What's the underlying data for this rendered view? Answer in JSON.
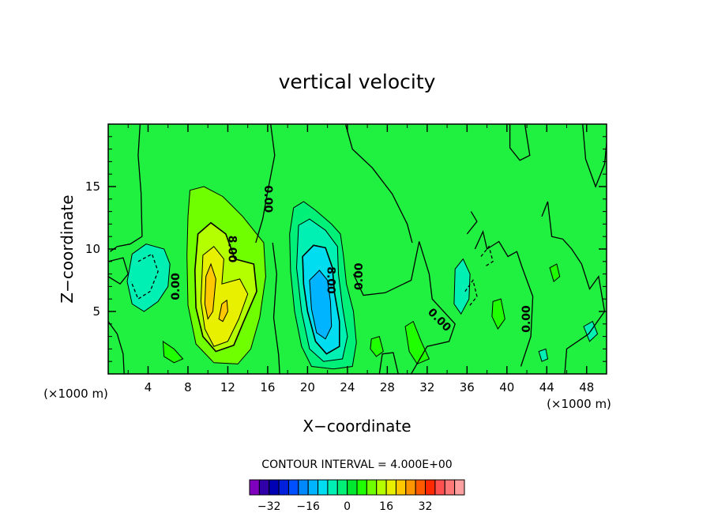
{
  "chart_data": {
    "type": "contour",
    "title": "vertical velocity",
    "xlabel": "X−coordinate",
    "ylabel": "Z−coordinate",
    "x_unit": "(×1000 m)",
    "y_unit": "(×1000 m)",
    "xlim": [
      0,
      50
    ],
    "ylim": [
      0,
      20
    ],
    "xticks": [
      4,
      8,
      12,
      16,
      20,
      24,
      28,
      32,
      36,
      40,
      44,
      48
    ],
    "yticks": [
      5,
      10,
      15
    ],
    "contour_interval_text": "CONTOUR INTERVAL = 4.000E+00",
    "contour_labels": [
      {
        "text": "0.00",
        "x": 6.8,
        "z": 7.0,
        "angle": -90
      },
      {
        "text": "8.00",
        "x": 12.4,
        "z": 10.0,
        "angle": 90
      },
      {
        "text": "0.00",
        "x": 16.0,
        "z": 14.0,
        "angle": 90
      },
      {
        "text": "8.00",
        "x": 22.3,
        "z": 7.5,
        "angle": 90
      },
      {
        "text": "0.00",
        "x": 25.2,
        "z": 7.8,
        "angle": -90
      },
      {
        "text": "0.00",
        "x": 33.2,
        "z": 4.3,
        "angle": 45
      },
      {
        "text": "0.00",
        "x": 42.0,
        "z": 4.4,
        "angle": -90
      }
    ],
    "colorbar": {
      "levels": [
        -36,
        -32,
        -28,
        -24,
        -20,
        -16,
        -12,
        -8,
        -4,
        0,
        4,
        8,
        12,
        16,
        20,
        24,
        28,
        32,
        36
      ],
      "tick_labels": [
        "−32",
        "−16",
        "0",
        "16",
        "32"
      ],
      "tick_values": [
        -32,
        -16,
        0,
        16,
        32
      ],
      "colors": [
        "#8000c0",
        "#3000a8",
        "#0000b4",
        "#0020dc",
        "#0050ff",
        "#0088ff",
        "#00b4ff",
        "#00dcf0",
        "#00f0b4",
        "#00f078",
        "#00e830",
        "#20ff00",
        "#70ff00",
        "#b4ff00",
        "#e8f000",
        "#ffc800",
        "#ff9600",
        "#ff5a00",
        "#ff2800",
        "#ff5050",
        "#ff7878",
        "#ffa0a0"
      ]
    },
    "features": [
      {
        "kind": "updraft",
        "center_x": 11,
        "center_z": 7,
        "max": 20
      },
      {
        "kind": "downdraft",
        "center_x": 21,
        "center_z": 5,
        "min": -12
      },
      {
        "kind": "weak-down",
        "center_x": 4,
        "center_z": 7,
        "min": -4
      }
    ]
  }
}
